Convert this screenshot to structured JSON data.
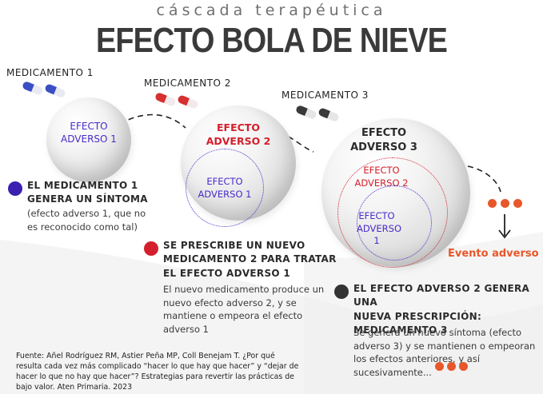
{
  "header": {
    "subtitle": "cáscada terapéutica",
    "title": "EFECTO BOLA DE NIEVE"
  },
  "medications": [
    {
      "label": "MEDICAMENTO 1",
      "pill_color": "#3a4fc4"
    },
    {
      "label": "MEDICAMENTO 2",
      "pill_color": "#d63030"
    },
    {
      "label": "MEDICAMENTO 3",
      "pill_color": "#3a3a3a"
    }
  ],
  "balls": {
    "ball1": {
      "line1": "EFECTO",
      "line2": "ADVERSO 1"
    },
    "ball2": {
      "outer_line1": "EFECTO",
      "outer_line2": "ADVERSO 2",
      "inner_line1": "EFECTO",
      "inner_line2": "ADVERSO 1"
    },
    "ball3": {
      "outer_line1": "EFECTO",
      "outer_line2": "ADVERSO 3",
      "mid_line1": "EFECTO",
      "mid_line2": "ADVERSO 2",
      "inner_line1": "EFECTO",
      "inner_line2": "ADVERSO 1"
    }
  },
  "steps": [
    {
      "bullet_color": "#3b1fb0",
      "heading_lines": [
        "EL MEDICAMENTO 1",
        "GENERA UN SÍNTOMA"
      ],
      "body_lines": [
        "(efecto adverso 1, que no",
        "es reconocido como tal)"
      ]
    },
    {
      "bullet_color": "#d41f2c",
      "heading_lines": [
        "SE PRESCRIBE UN NUEVO",
        "MEDICAMENTO 2 PARA TRATAR",
        "EL EFECTO ADVERSO 1"
      ],
      "body_lines": [
        "El nuevo medicamento produce un",
        "nuevo efecto adverso 2, y se",
        "mantiene o empeora el efecto",
        "adverso 1"
      ]
    },
    {
      "bullet_color": "#333333",
      "heading_lines": [
        "EL EFECTO ADVERSO 2 GENERA UNA",
        "NUEVA PRESCRIPCIÓN:",
        "MEDICAMENTO 3"
      ],
      "body_lines": [
        "Se genera un nuevo síntoma (efecto",
        "adverso 3) y se mantienen o empeoran",
        "los efectos anteriores, y así",
        "sucesivamente..."
      ]
    }
  ],
  "event": {
    "label": "Evento adverso"
  },
  "source": {
    "lines": [
      "Fuente: Añel Rodríguez RM, Astier Peña MP, Coll Benejam T. ¿Por qué",
      "resulta cada vez más complicado “hacer lo que hay que hacer” y “dejar de",
      "hacer lo que no hay que hacer”? Estrategias para revertir las prácticas de",
      "bajo valor. Aten Primaria. 2023"
    ]
  },
  "colors": {
    "purple": "#4a2bc9",
    "red": "#d41f2c",
    "orange": "#e8572a",
    "dark": "#2b2b2b"
  }
}
